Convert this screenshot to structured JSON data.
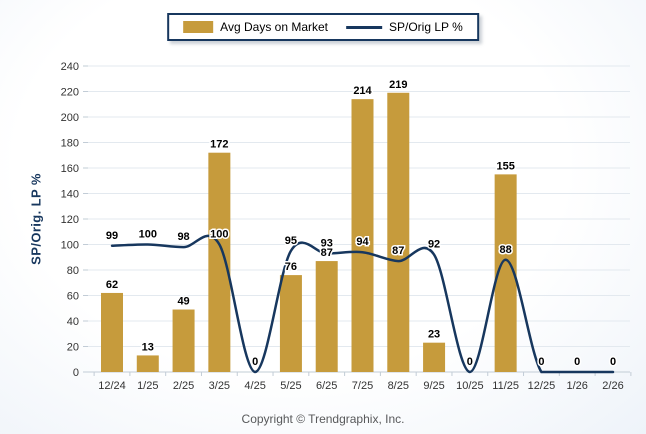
{
  "chart_data": {
    "type": "bar+line",
    "categories": [
      "12/24",
      "1/25",
      "2/25",
      "3/25",
      "4/25",
      "5/25",
      "6/25",
      "7/25",
      "8/25",
      "9/25",
      "10/25",
      "11/25",
      "12/25",
      "1/26",
      "2/26"
    ],
    "series": [
      {
        "name": "Avg Days on Market",
        "type": "bar",
        "values": [
          62,
          13,
          49,
          172,
          0,
          76,
          87,
          214,
          219,
          23,
          0,
          155,
          0,
          0,
          0
        ]
      },
      {
        "name": "SP/Orig LP %",
        "type": "line",
        "values": [
          99,
          100,
          98,
          100,
          0,
          95,
          93,
          94,
          87,
          92,
          0,
          88,
          0,
          0,
          0
        ]
      }
    ],
    "title": "",
    "xlabel": "",
    "ylabel": "SP/Orig. LP %",
    "ylim": [
      0,
      240
    ],
    "ytick_step": 20,
    "grid": true,
    "legend_position": "top-center"
  },
  "legend": {
    "bar_label": "Avg Days on Market",
    "line_label": "SP/Orig LP %"
  },
  "footer": {
    "copyright": "Copyright © Trendgraphix, Inc."
  },
  "colors": {
    "bar": "#C69B3C",
    "line": "#17375E",
    "grid": "#e3e9ef",
    "axis": "#c2ccd6",
    "axis_text": "#333333",
    "value_label_text": "#000000",
    "ylabel_text": "#17375E",
    "copyright_text": "#58595b",
    "legend_border": "#17375E"
  }
}
